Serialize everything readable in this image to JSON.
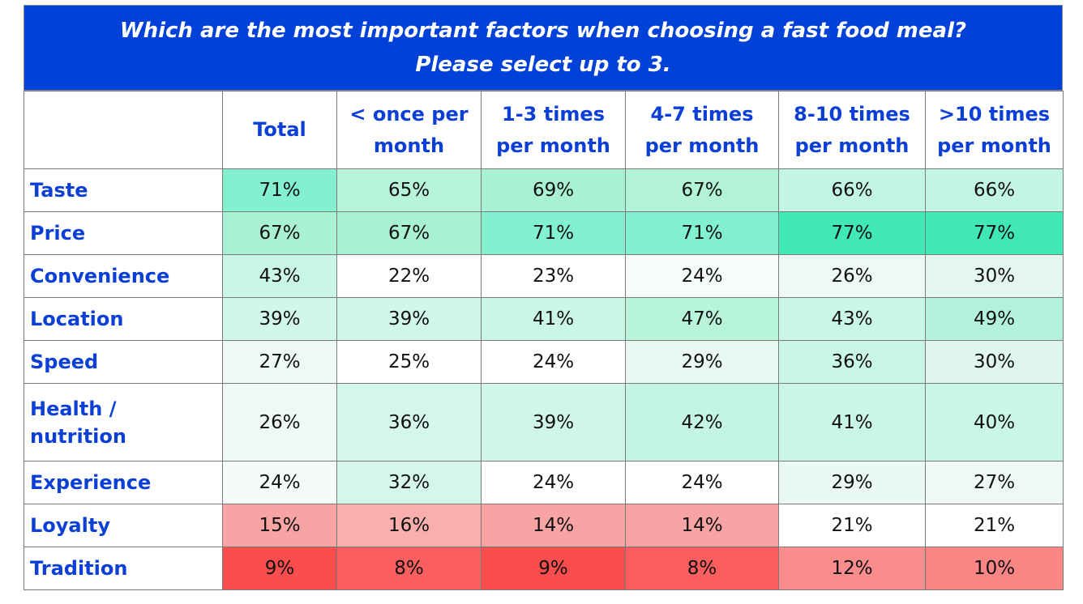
{
  "title": {
    "line1": "Which are the most important factors when choosing a fast food meal?",
    "line2": "Please select up to 3."
  },
  "colors": {
    "header_bg": "#0241d8",
    "label_text": "#0b3fd6",
    "high": "#3fe8b4",
    "mid": "#b8f3dc",
    "low": "#f9a4a4",
    "lowest": "#fa4d4d"
  },
  "chart_data": {
    "type": "table",
    "title": "Which are the most important factors when choosing a fast food meal? Please select up to 3.",
    "columns": [
      "Total",
      "< once per month",
      "1-3 times per month",
      "4-7 times per month",
      "8-10 times per month",
      ">10 times per month"
    ],
    "columns_display": [
      [
        "Total"
      ],
      [
        "< once per",
        "month"
      ],
      [
        "1-3 times",
        "per month"
      ],
      [
        "4-7 times",
        "per month"
      ],
      [
        "8-10 times",
        "per month"
      ],
      [
        ">10 times",
        "per month"
      ]
    ],
    "rows": [
      {
        "label": "Taste",
        "label_lines": [
          "Taste"
        ],
        "values": [
          "71%",
          "65%",
          "69%",
          "67%",
          "66%",
          "66%"
        ],
        "bg": [
          "#83f0cf",
          "#b8f3dc",
          "#a9f1d5",
          "#b1f2d8",
          "#c2f5e2",
          "#c2f5e2"
        ]
      },
      {
        "label": "Price",
        "label_lines": [
          "Price"
        ],
        "values": [
          "67%",
          "67%",
          "71%",
          "71%",
          "77%",
          "77%"
        ],
        "bg": [
          "#a9f1d5",
          "#a9f1d5",
          "#83f0cf",
          "#83f0cf",
          "#3fe8b4",
          "#3fe8b4"
        ]
      },
      {
        "label": "Convenience",
        "label_lines": [
          "Convenience"
        ],
        "values": [
          "43%",
          "22%",
          "23%",
          "24%",
          "26%",
          "30%"
        ],
        "bg": [
          "#c9f6e5",
          "#ffffff",
          "#ffffff",
          "#f7fcfa",
          "#eef9f4",
          "#e4f7ef"
        ]
      },
      {
        "label": "Location",
        "label_lines": [
          "Location"
        ],
        "values": [
          "39%",
          "39%",
          "41%",
          "47%",
          "43%",
          "49%"
        ],
        "bg": [
          "#d1f7e9",
          "#d1f7e9",
          "#c9f6e5",
          "#b8f3dc",
          "#c9f6e5",
          "#b3f2da"
        ]
      },
      {
        "label": "Speed",
        "label_lines": [
          "Speed"
        ],
        "values": [
          "27%",
          "25%",
          "24%",
          "29%",
          "36%",
          "30%"
        ],
        "bg": [
          "#eef9f4",
          "#ffffff",
          "#ffffff",
          "#e8f8f1",
          "#c9f6e5",
          "#dff6ec"
        ]
      },
      {
        "label": "Health / nutrition",
        "label_lines": [
          "Health /",
          "nutrition"
        ],
        "values": [
          "26%",
          "36%",
          "39%",
          "42%",
          "41%",
          "40%"
        ],
        "bg": [
          "#eef9f4",
          "#d4f7ea",
          "#cff6e8",
          "#c4f5e3",
          "#c9f6e5",
          "#c9f6e5"
        ]
      },
      {
        "label": "Experience",
        "label_lines": [
          "Experience"
        ],
        "values": [
          "24%",
          "32%",
          "24%",
          "24%",
          "29%",
          "27%"
        ],
        "bg": [
          "#f4fbf8",
          "#d4f7ea",
          "#ffffff",
          "#ffffff",
          "#eaf9f3",
          "#eef9f4"
        ]
      },
      {
        "label": "Loyalty",
        "label_lines": [
          "Loyalty"
        ],
        "values": [
          "15%",
          "16%",
          "14%",
          "14%",
          "21%",
          "21%"
        ],
        "bg": [
          "#f9a4a4",
          "#faaeae",
          "#f9a4a4",
          "#f9a4a4",
          "#ffffff",
          "#ffffff"
        ]
      },
      {
        "label": "Tradition",
        "label_lines": [
          "Tradition"
        ],
        "values": [
          "9%",
          "8%",
          "9%",
          "8%",
          "12%",
          "10%"
        ],
        "bg": [
          "#fa4d4d",
          "#fb5e5e",
          "#fa4d4d",
          "#fb5e5e",
          "#f98d8d",
          "#fa8585"
        ]
      }
    ]
  }
}
